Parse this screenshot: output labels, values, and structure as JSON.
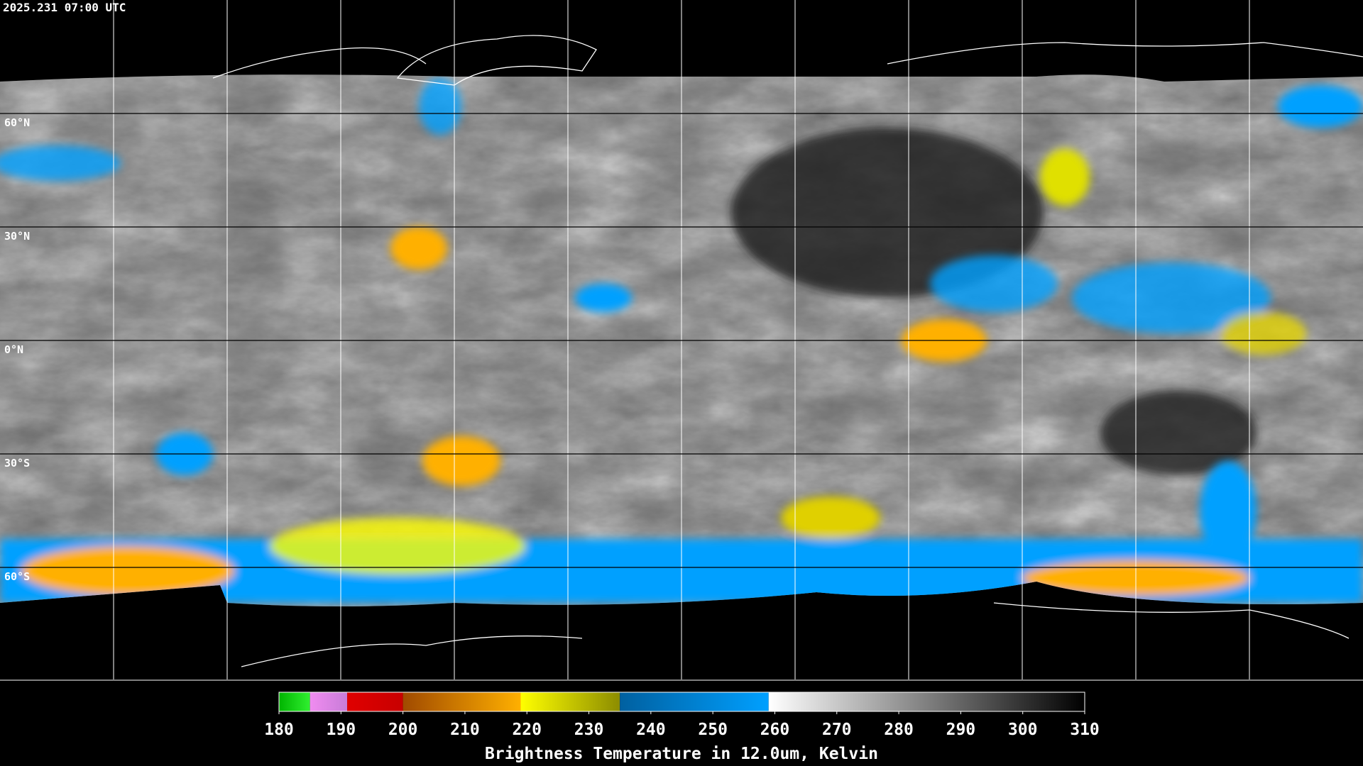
{
  "timestamp": "2025.231 07:00 UTC",
  "latitude_labels": [
    "60°N",
    "30°N",
    "0°N",
    "30°S",
    "60°S"
  ],
  "colorbar": {
    "title": "Brightness Temperature in 12.0um, Kelvin",
    "lim": [
      180,
      310
    ],
    "ticks": [
      180,
      190,
      200,
      210,
      220,
      230,
      240,
      250,
      260,
      270,
      280,
      290,
      300,
      310
    ],
    "segments": [
      {
        "from": 180,
        "to": 185,
        "colors": [
          "#00b400",
          "#30f030"
        ]
      },
      {
        "from": 185,
        "to": 191,
        "colors": [
          "#f08cf0",
          "#c87cd8"
        ]
      },
      {
        "from": 191,
        "to": 200,
        "colors": [
          "#e00000",
          "#c80000"
        ]
      },
      {
        "from": 200,
        "to": 219,
        "colors": [
          "#a04a00",
          "#ffb000"
        ]
      },
      {
        "from": 219,
        "to": 235,
        "colors": [
          "#ffff00",
          "#8c8c00"
        ]
      },
      {
        "from": 235,
        "to": 259,
        "colors": [
          "#0060a0",
          "#00a0ff"
        ]
      },
      {
        "from": 259,
        "to": 310,
        "colors": [
          "#ffffff",
          "#000000"
        ]
      }
    ]
  }
}
